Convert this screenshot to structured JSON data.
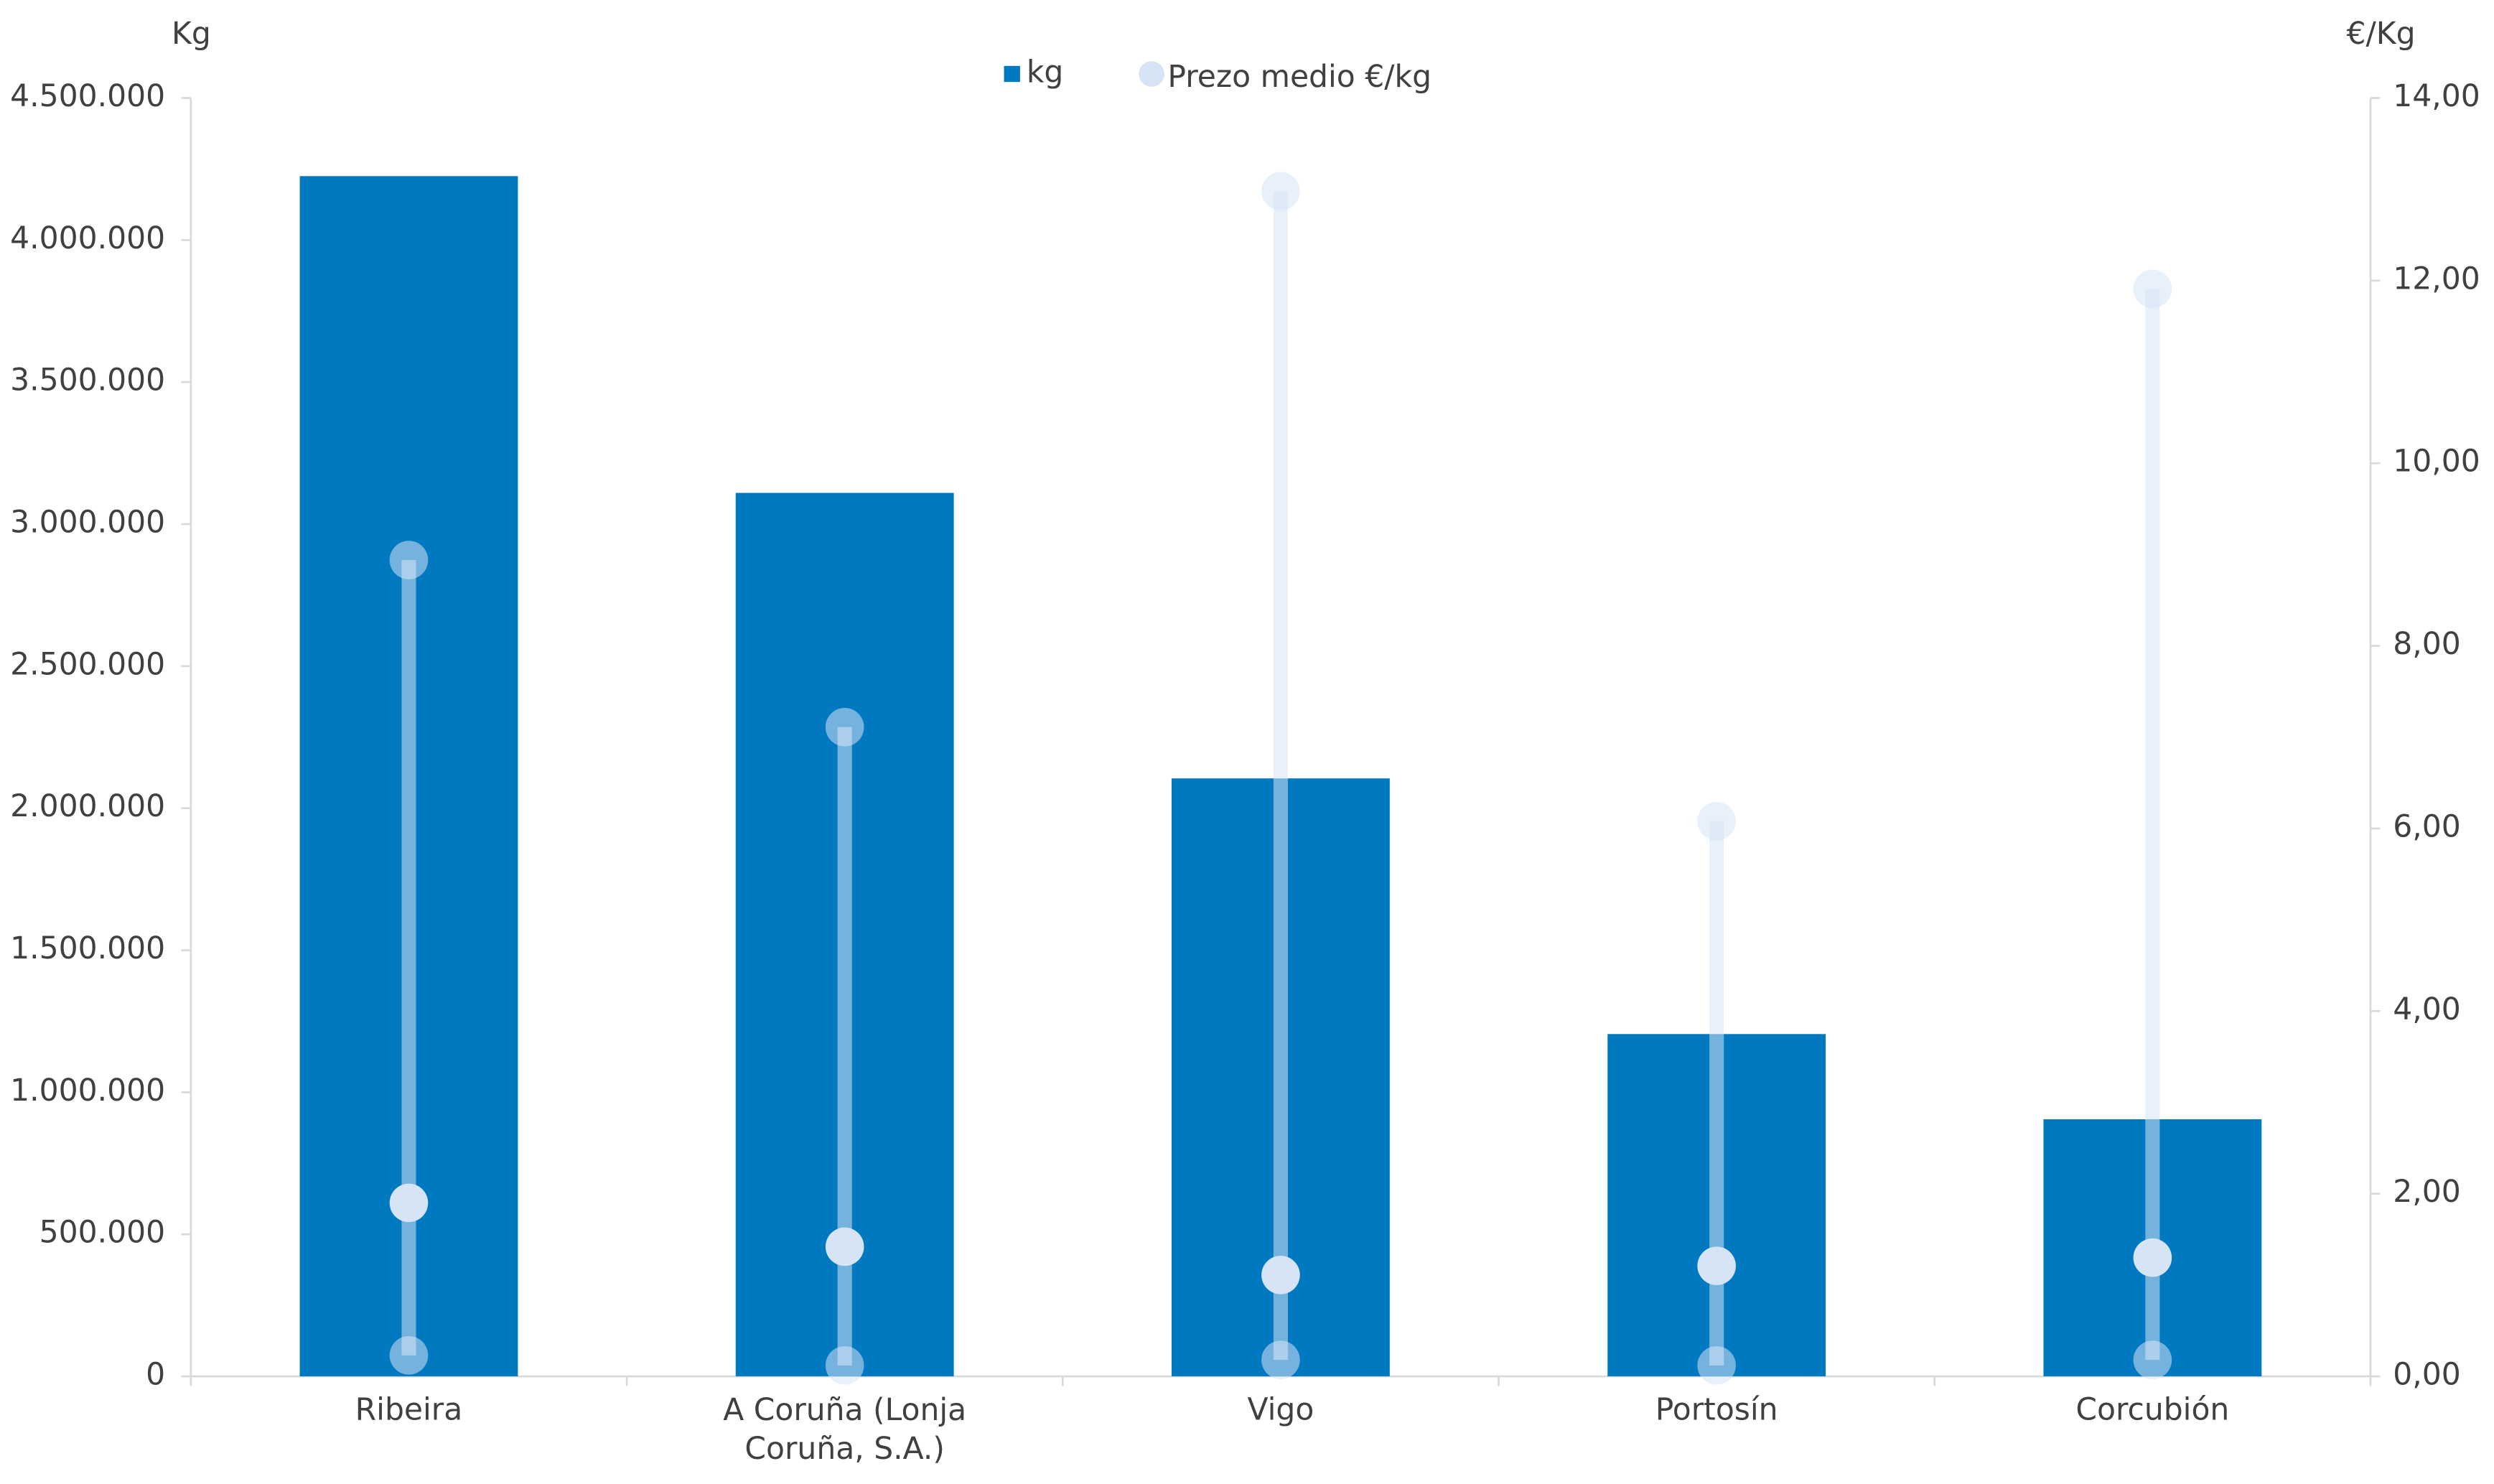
{
  "chart_data": {
    "type": "bar_range",
    "y_axis_label": "Kg",
    "y2_axis_label": "€/Kg",
    "categories": [
      "Ribeira",
      "A Coruña (Lonja Coruña, S.A.)",
      "Vigo",
      "Portosín",
      "Corcubión"
    ],
    "series": [
      {
        "name": "kg",
        "color": "#0079c1",
        "values": [
          4225000,
          3110000,
          2105000,
          1205000,
          905000
        ]
      },
      {
        "name": "Prezo medio €/kg",
        "color": "#d6e4f5",
        "axis": "y2",
        "values": [
          1.9,
          1.42,
          1.11,
          1.21,
          1.3
        ],
        "low": [
          0.23,
          0.12,
          0.18,
          0.12,
          0.18
        ],
        "high": [
          8.94,
          7.11,
          12.98,
          6.08,
          11.91
        ]
      }
    ],
    "ylim": [
      0,
      4500000
    ],
    "yticks": [
      0,
      {
        "value": 500000,
        "label": "500.000"
      },
      {
        "value": 1000000,
        "label": "1.000.000"
      },
      {
        "value": 1500000,
        "label": "1.500.000"
      },
      {
        "value": 2000000,
        "label": "2.000.000"
      },
      {
        "value": 2500000,
        "label": "2.500.000"
      },
      {
        "value": 3000000,
        "label": "3.000.000"
      },
      {
        "value": 3500000,
        "label": "3.500.000"
      },
      {
        "value": 4000000,
        "label": "4.000.000"
      },
      {
        "value": 4500000,
        "label": "4.500.000"
      }
    ],
    "y2lim": [
      0,
      14
    ],
    "y2ticks": [
      {
        "value": 0,
        "label": "0,00"
      },
      {
        "value": 2,
        "label": "2,00"
      },
      {
        "value": 4,
        "label": "4,00"
      },
      {
        "value": 6,
        "label": "6,00"
      },
      {
        "value": 8,
        "label": "8,00"
      },
      {
        "value": 10,
        "label": "10,00"
      },
      {
        "value": 12,
        "label": "12,00"
      },
      {
        "value": 14,
        "label": "14,00"
      }
    ],
    "legend": "top"
  }
}
